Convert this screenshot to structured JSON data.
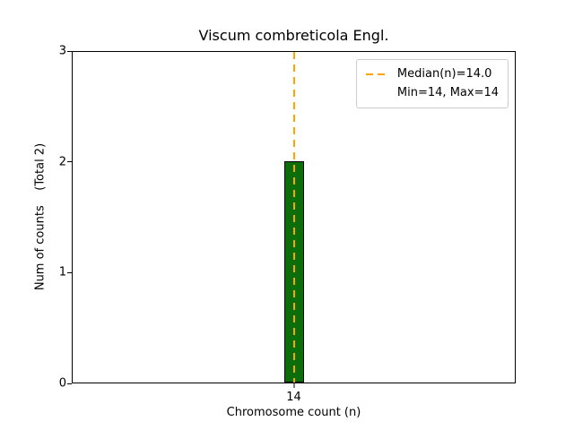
{
  "chart_data": {
    "type": "bar",
    "title": "Viscum combreticola Engl.",
    "xlabel": "Chromosome count (n)",
    "ylabel": "Num of counts    (Total 2)",
    "categories": [
      "14"
    ],
    "values": [
      2
    ],
    "total_counts": 2,
    "ylim": [
      0,
      3
    ],
    "yticks": [
      0,
      1,
      2,
      3
    ],
    "xticks": [
      "14"
    ],
    "grid": false,
    "bar_color": "#0b6e0b",
    "bar_edge_color": "#000000",
    "median_line": {
      "value": 14.0,
      "at_category": "14",
      "style": "dashed",
      "color": "#ffa500"
    },
    "legend": {
      "position": "upper right",
      "entries": [
        {
          "label": "Median(n)=14.0",
          "marker": "dashed-line",
          "color": "#ffa500"
        },
        {
          "label": "Min=14, Max=14",
          "marker": "none",
          "color": ""
        }
      ]
    }
  }
}
